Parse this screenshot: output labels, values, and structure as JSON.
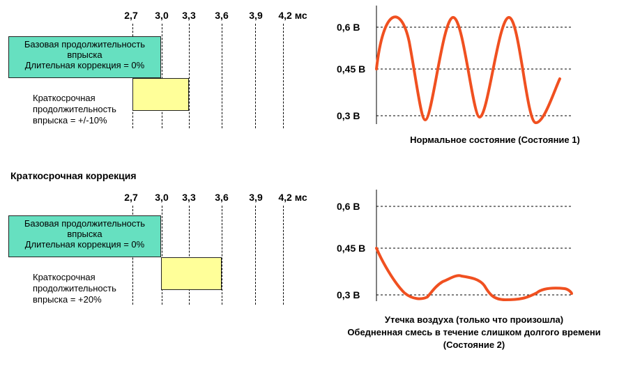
{
  "colors": {
    "base_box": "#66e0c0",
    "short_box": "#ffff99",
    "wave": "#f05020"
  },
  "section2_title": "Краткосрочная коррекция",
  "ticks": [
    "2,7",
    "3,0",
    "3,3",
    "3,6",
    "3,9",
    "4,2 мс"
  ],
  "panel1": {
    "base_line1": "Базовая продолжительность",
    "base_line2": "впрыска",
    "base_line3": "Длительная коррекция = 0%",
    "short_line1": "Краткосрочная",
    "short_line2": "продолжительность",
    "short_line3": "впрыска = +/-10%"
  },
  "panel2": {
    "base_line1": "Базовая продолжительность",
    "base_line2": "впрыска",
    "base_line3": "Длительная коррекция = 0%",
    "short_line1": "Краткосрочная",
    "short_line2": "продолжительность",
    "short_line3": "впрыска = +20%"
  },
  "graph1": {
    "y_labels": [
      "0,6 В",
      "0,45 В",
      "0,3 В"
    ],
    "caption": "Нормальное состояние (Состояние 1)"
  },
  "graph2": {
    "y_labels": [
      "0,6 В",
      "0,45 В",
      "0,3 В"
    ],
    "caption_line1": "Утечка воздуха (только что произошла)",
    "caption_line2": "Обедненная смесь в течение слишком долгого времени",
    "caption_line3": "(Состояние 2)"
  }
}
